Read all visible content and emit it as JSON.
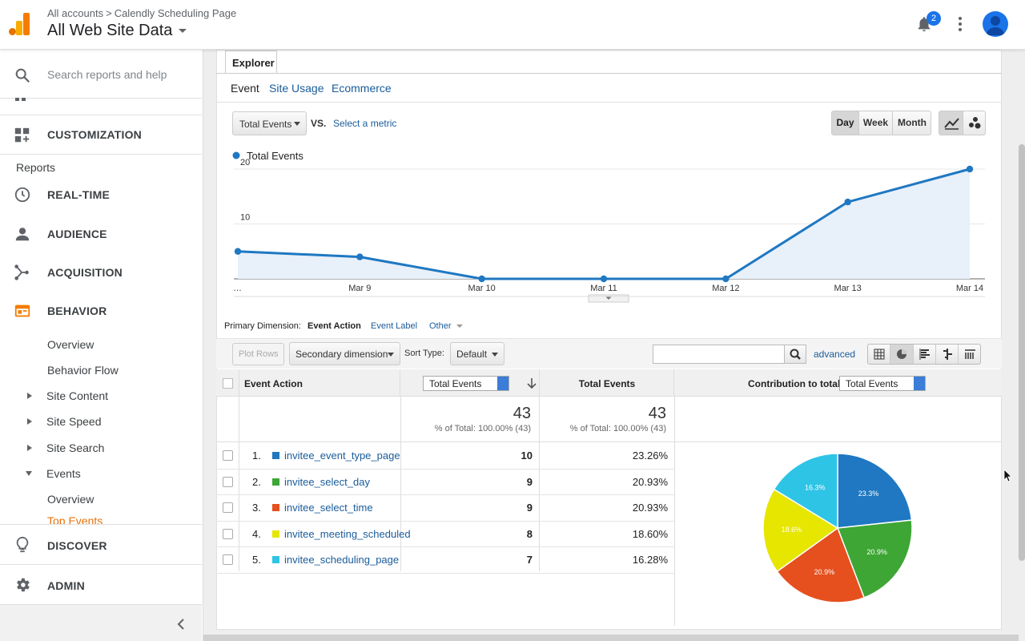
{
  "header": {
    "breadcrumb_root": "All accounts",
    "breadcrumb_sep": ">",
    "breadcrumb_page": "Calendly Scheduling Page",
    "account_title": "All Web Site Data",
    "notifications_count": "2"
  },
  "sidebar": {
    "search_placeholder": "Search reports and help",
    "customization": "CUSTOMIZATION",
    "reports_heading": "Reports",
    "realtime": "REAL-TIME",
    "audience": "AUDIENCE",
    "acquisition": "ACQUISITION",
    "behavior": "BEHAVIOR",
    "behavior_items": {
      "overview": "Overview",
      "behavior_flow": "Behavior Flow",
      "site_content": "Site Content",
      "site_speed": "Site Speed",
      "site_search": "Site Search",
      "events": "Events",
      "events_overview": "Overview",
      "top_events": "Top Events"
    },
    "discover": "DISCOVER",
    "admin": "ADMIN"
  },
  "explorer": {
    "tab": "Explorer",
    "subtabs": {
      "event": "Event",
      "site_usage": "Site Usage",
      "ecommerce": "Ecommerce"
    },
    "metric_select": "Total Events",
    "vs": "VS.",
    "select_metric": "Select a metric",
    "granularity": {
      "day": "Day",
      "week": "Week",
      "month": "Month"
    }
  },
  "chart_data": {
    "type": "area",
    "legend": "Total Events",
    "x": [
      "…",
      "Mar 9",
      "Mar 10",
      "Mar 11",
      "Mar 12",
      "Mar 13",
      "Mar 14"
    ],
    "series": [
      {
        "name": "Total Events",
        "values": [
          5,
          4,
          0,
          0,
          0,
          14,
          20
        ]
      }
    ],
    "y_ticks": [
      "10",
      "20"
    ],
    "ylim": [
      0,
      20
    ],
    "color": "#1f78c1"
  },
  "dimensions": {
    "label": "Primary Dimension:",
    "event_action": "Event Action",
    "event_label": "Event Label",
    "other": "Other"
  },
  "toolbar": {
    "plot_rows": "Plot Rows",
    "secondary_dimension": "Secondary dimension",
    "sort_type_label": "Sort Type:",
    "sort_type_value": "Default",
    "advanced": "advanced"
  },
  "table": {
    "col_event_action": "Event Action",
    "col_metric_select": "Total Events",
    "col_total_events": "Total Events",
    "contribution_label": "Contribution to total:",
    "contribution_select": "Total Events",
    "summary_value": "43",
    "summary_pct": "% of Total: 100.00% (43)",
    "summary_value2": "43",
    "summary_pct2": "% of Total: 100.00% (43)",
    "rows": [
      {
        "num": "1.",
        "name": "invitee_event_type_page",
        "value": "10",
        "pct": "23.26%",
        "color": "#1f78c1"
      },
      {
        "num": "2.",
        "name": "invitee_select_day",
        "value": "9",
        "pct": "20.93%",
        "color": "#3da635"
      },
      {
        "num": "3.",
        "name": "invitee_select_time",
        "value": "9",
        "pct": "20.93%",
        "color": "#e5501e"
      },
      {
        "num": "4.",
        "name": "invitee_meeting_scheduled",
        "value": "8",
        "pct": "18.60%",
        "color": "#e6e600"
      },
      {
        "num": "5.",
        "name": "invitee_scheduling_page",
        "value": "7",
        "pct": "16.28%",
        "color": "#2ec4e6"
      }
    ]
  },
  "pie_data": {
    "type": "pie",
    "slices": [
      {
        "label": "23.3%",
        "value": 23.3,
        "color": "#1f78c1"
      },
      {
        "label": "20.9%",
        "value": 20.9,
        "color": "#3da635"
      },
      {
        "label": "20.9%",
        "value": 20.9,
        "color": "#e5501e"
      },
      {
        "label": "18.6%",
        "value": 18.6,
        "color": "#e6e600"
      },
      {
        "label": "16.3%",
        "value": 16.3,
        "color": "#2ec4e6"
      }
    ]
  }
}
